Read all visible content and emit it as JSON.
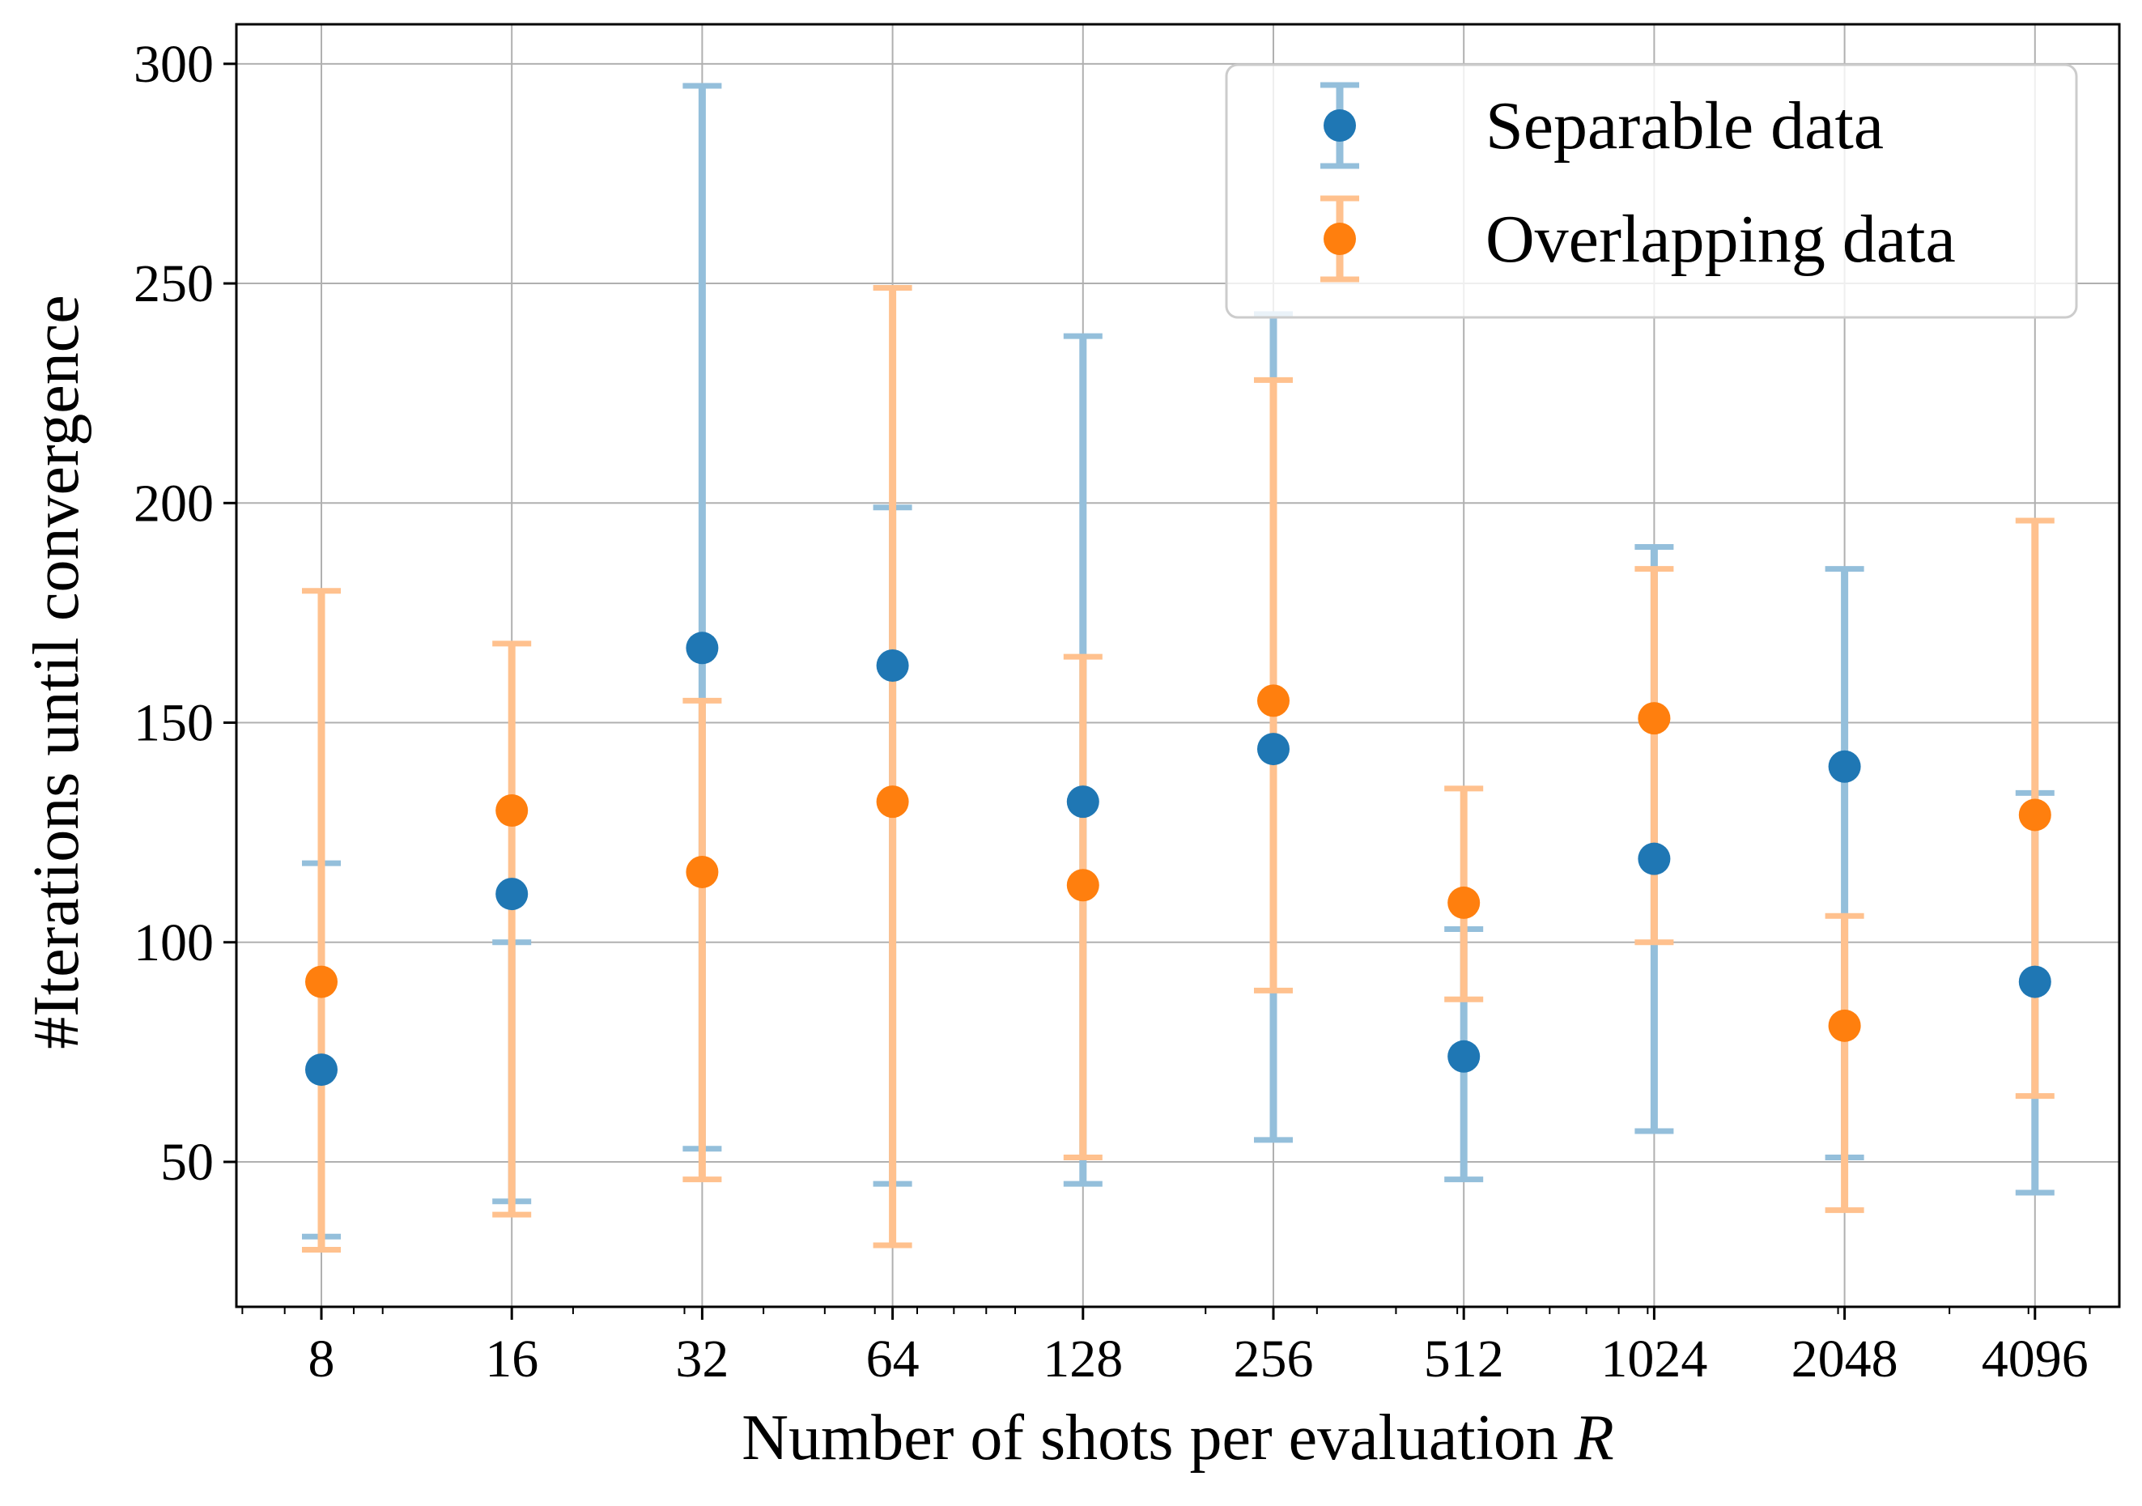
{
  "chart_data": {
    "type": "scatter",
    "x_scale": "log2",
    "categories": [
      "8",
      "16",
      "32",
      "64",
      "128",
      "256",
      "512",
      "1024",
      "2048",
      "4096"
    ],
    "x": [
      8,
      16,
      32,
      64,
      128,
      256,
      512,
      1024,
      2048,
      4096
    ],
    "xlabel_text": "Number of shots per evaluation ",
    "xlabel_var": "R",
    "ylabel": "#Iterations until convergence",
    "ylim": [
      17,
      309
    ],
    "yticks": [
      "50",
      "100",
      "150",
      "200",
      "250",
      "300"
    ],
    "ytick_values": [
      50,
      100,
      150,
      200,
      250,
      300
    ],
    "grid": true,
    "legend_position": "top-right",
    "series": [
      {
        "name": "Separable data",
        "color": "#1f77b4",
        "error_color": "#94bfdb",
        "values": [
          71,
          111,
          167,
          163,
          132,
          144,
          74,
          119,
          140,
          91
        ],
        "lower": [
          33,
          41,
          53,
          45,
          45,
          55,
          46,
          57,
          51,
          43
        ],
        "upper": [
          118,
          100,
          295,
          199,
          238,
          243,
          103,
          190,
          185,
          134
        ]
      },
      {
        "name": "Overlapping data",
        "color": "#ff7f0e",
        "error_color": "#ffc18e",
        "values": [
          91,
          130,
          116,
          132,
          113,
          155,
          109,
          151,
          81,
          129
        ],
        "lower": [
          30,
          38,
          46,
          31,
          51,
          89,
          87,
          100,
          39,
          65
        ],
        "upper": [
          180,
          168,
          155,
          249,
          165,
          228,
          135,
          185,
          106,
          196
        ]
      }
    ]
  }
}
